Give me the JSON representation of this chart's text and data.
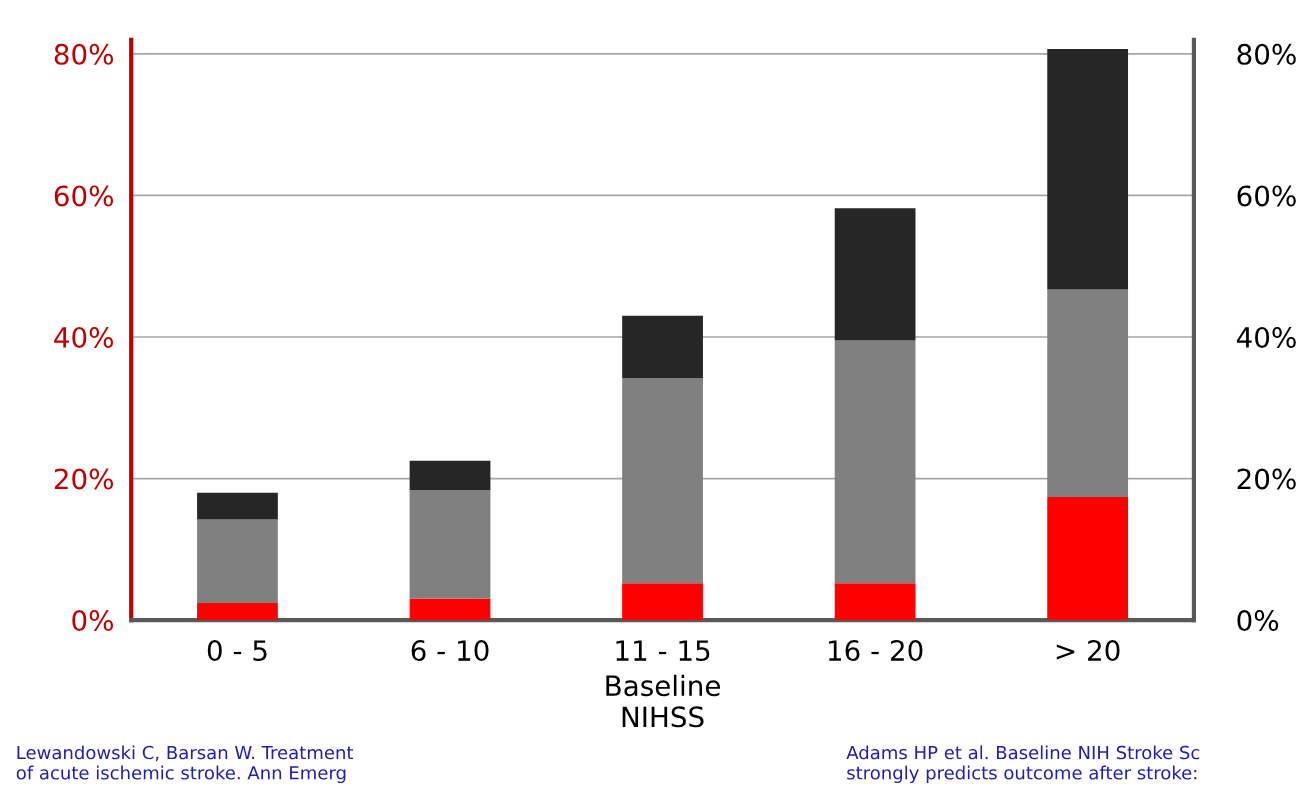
{
  "chart_data": {
    "type": "bar",
    "stacked": true,
    "xlabel": "Baseline\nNIHSS",
    "categories": [
      "0 - 5",
      "6 - 10",
      "11 - 15",
      "16 - 20",
      "> 20"
    ],
    "series": [
      {
        "color": "#ff0000",
        "values": [
          2.4,
          3.0,
          5.2,
          5.2,
          17.4
        ]
      },
      {
        "color": "#808080",
        "values": [
          11.8,
          15.4,
          29.0,
          34.3,
          29.3
        ]
      },
      {
        "color": "#262626",
        "values": [
          3.8,
          4.1,
          8.8,
          18.7,
          34.0
        ]
      }
    ],
    "ylim": [
      0,
      82
    ],
    "yticks": [
      {
        "value": 0,
        "label": "0%"
      },
      {
        "value": 20,
        "label": "20%"
      },
      {
        "value": 40,
        "label": "40%"
      },
      {
        "value": 60,
        "label": "60%"
      },
      {
        "value": 80,
        "label": "80%"
      }
    ],
    "y2lim": [
      0,
      82
    ],
    "y2ticks": [
      {
        "value": 0,
        "label": "0%"
      },
      {
        "value": 20,
        "label": "20%"
      },
      {
        "value": 40,
        "label": "40%"
      },
      {
        "value": 60,
        "label": "60%"
      },
      {
        "value": 80,
        "label": "80%"
      }
    ],
    "grid": "y",
    "legend": false,
    "annotations": [
      "Lewandowski C, Barsan W. Treatment\nof acute ischemic stroke. Ann Emerg",
      "Adams HP et al. Baseline NIH Stroke Sc\nstrongly predicts outcome after stroke:"
    ]
  }
}
